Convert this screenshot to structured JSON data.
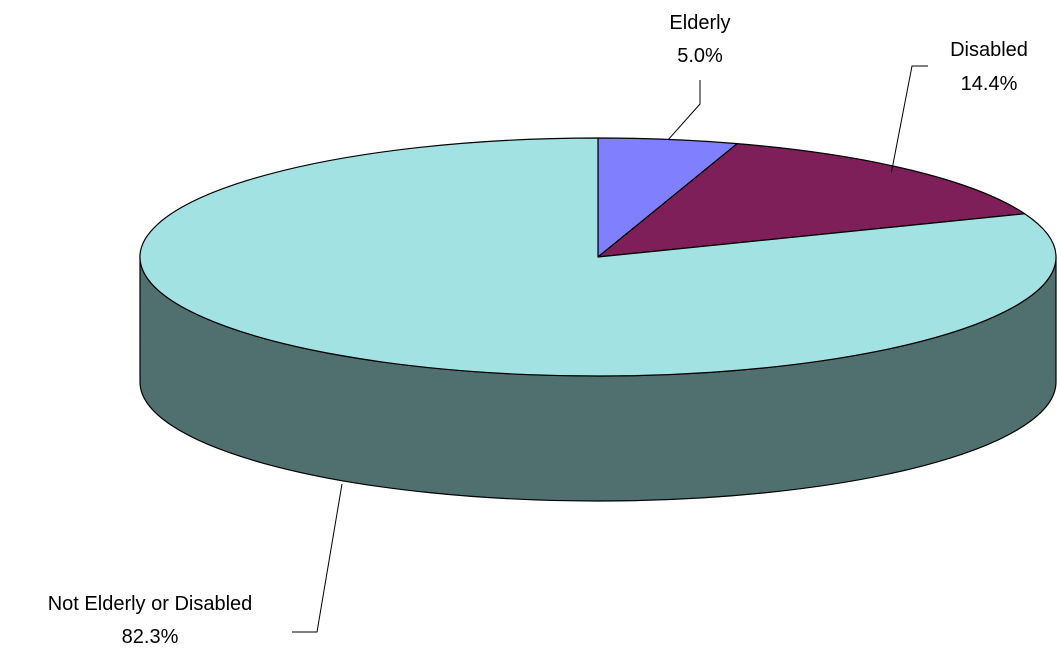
{
  "chart_data": {
    "type": "pie",
    "style": "3d",
    "categories": [
      "Elderly",
      "Disabled",
      "Not Elderly or Disabled"
    ],
    "values": [
      5.0,
      14.4,
      82.3
    ],
    "value_labels": [
      "5.0%",
      "14.4%",
      "82.3%"
    ],
    "colors": [
      "#8080FF",
      "#7F1F5A",
      "#A2E2E2"
    ],
    "side_color": "#507070",
    "legend": "none"
  }
}
